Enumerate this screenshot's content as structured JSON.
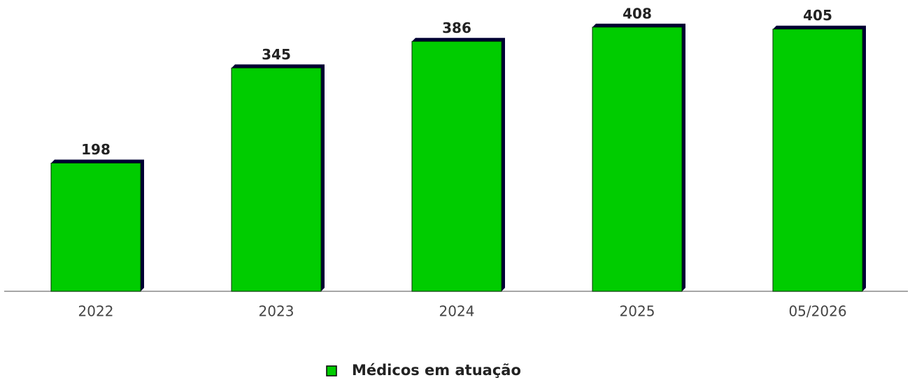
{
  "chart_data": {
    "type": "bar",
    "categories": [
      "2022",
      "2023",
      "2024",
      "2025",
      "05/2026"
    ],
    "series": [
      {
        "name": "Médicos em atuação",
        "color": "#00cc00",
        "values": [
          198,
          345,
          386,
          408,
          405
        ]
      }
    ],
    "ylim": [
      0,
      450
    ],
    "legend": "bottom"
  }
}
